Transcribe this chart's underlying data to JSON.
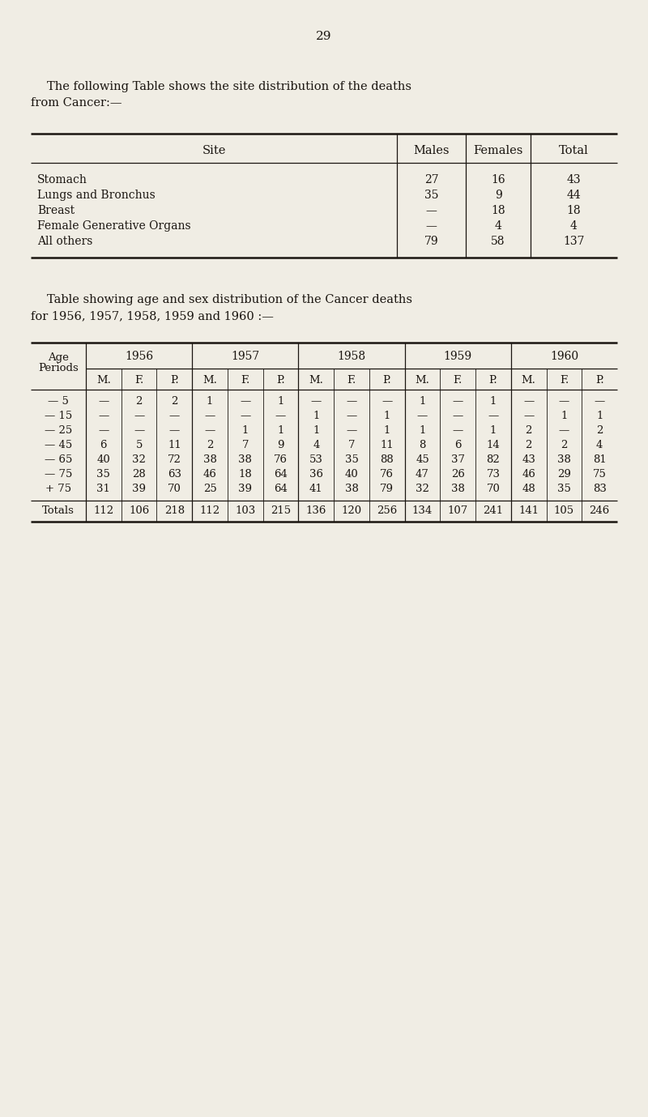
{
  "page_number": "29",
  "bg_color": "#f0ede4",
  "text_color": "#1a1510",
  "para1_line1": "The following Table shows the site distribution of the deaths",
  "para1_line2": "from Cancer:—",
  "table1_headers": [
    "Site",
    "Males",
    "Females",
    "Total"
  ],
  "table1_rows": [
    [
      "Stomach",
      "27",
      "16",
      "43"
    ],
    [
      "Lungs and Bronchus",
      "35",
      "9",
      "44"
    ],
    [
      "Breast",
      "—",
      "18",
      "18"
    ],
    [
      "Female Generative Organs",
      "—",
      "4",
      "4"
    ],
    [
      "All others",
      "79",
      "58",
      "137"
    ]
  ],
  "para2_line1": "Table showing age and sex distribution of the Cancer deaths",
  "para2_line2": "for 1956, 1957, 1958, 1959 and 1960 :—",
  "table2_year_headers": [
    "1956",
    "1957",
    "1958",
    "1959",
    "1960"
  ],
  "table2_sub_headers": [
    "M.",
    "F.",
    "P."
  ],
  "table2_age_periods": [
    "— 5",
    "— 15",
    "— 25",
    "— 45",
    "— 65",
    "— 75",
    "+ 75",
    "Totals"
  ],
  "table2_data": {
    "1956": {
      "M": [
        "—",
        "—",
        "—",
        "6",
        "40",
        "35",
        "31",
        "112"
      ],
      "F": [
        "2",
        "—",
        "—",
        "5",
        "32",
        "28",
        "39",
        "106"
      ],
      "P": [
        "2",
        "—",
        "—",
        "11",
        "72",
        "63",
        "70",
        "218"
      ]
    },
    "1957": {
      "M": [
        "1",
        "—",
        "—",
        "2",
        "38",
        "46",
        "25",
        "112"
      ],
      "F": [
        "—",
        "—",
        "1",
        "7",
        "38",
        "18",
        "39",
        "103"
      ],
      "P": [
        "1",
        "—",
        "1",
        "9",
        "76",
        "64",
        "64",
        "215"
      ]
    },
    "1958": {
      "M": [
        "—",
        "1",
        "1",
        "4",
        "53",
        "36",
        "41",
        "136"
      ],
      "F": [
        "—",
        "—",
        "—",
        "7",
        "35",
        "40",
        "38",
        "120"
      ],
      "P": [
        "—",
        "1",
        "1",
        "11",
        "88",
        "76",
        "79",
        "256"
      ]
    },
    "1959": {
      "M": [
        "1",
        "—",
        "1",
        "8",
        "45",
        "47",
        "32",
        "134"
      ],
      "F": [
        "—",
        "—",
        "—",
        "6",
        "37",
        "26",
        "38",
        "107"
      ],
      "P": [
        "1",
        "—",
        "1",
        "14",
        "82",
        "73",
        "70",
        "241"
      ]
    },
    "1960": {
      "M": [
        "—",
        "—",
        "2",
        "2",
        "43",
        "46",
        "48",
        "141"
      ],
      "F": [
        "—",
        "1",
        "—",
        "2",
        "38",
        "29",
        "35",
        "105"
      ],
      "P": [
        "—",
        "1",
        "2",
        "4",
        "81",
        "75",
        "83",
        "246"
      ]
    }
  }
}
